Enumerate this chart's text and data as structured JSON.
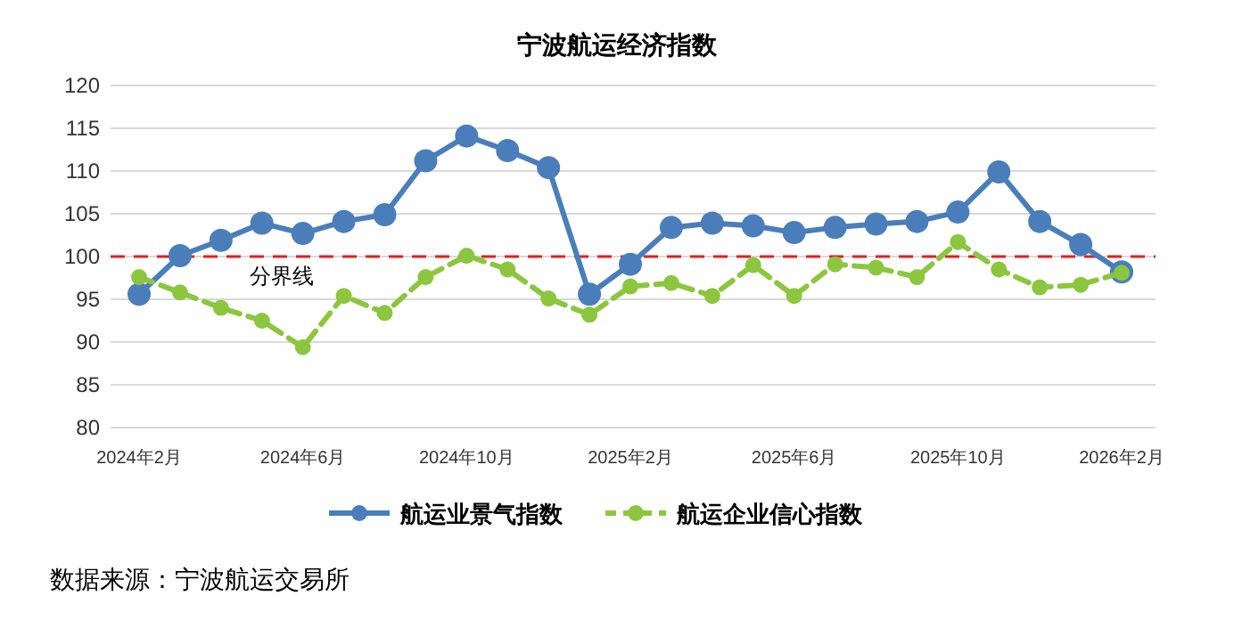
{
  "chart_data": {
    "type": "line",
    "title": "宁波航运经济指数",
    "categories": [
      "2024年2月",
      null,
      null,
      null,
      "2024年6月",
      null,
      null,
      null,
      "2024年10月",
      null,
      null,
      null,
      "2025年2月",
      null,
      null,
      null,
      "2025年6月",
      null,
      null,
      null,
      "2025年10月",
      null,
      null,
      null,
      "2026年2月"
    ],
    "series": [
      {
        "name": "航运业景气指数",
        "color": "#4a7ebb",
        "line_style": "solid",
        "values": [
          95.6,
          100.1,
          101.9,
          103.9,
          102.7,
          104.1,
          104.9,
          111.2,
          114.1,
          112.4,
          110.4,
          95.6,
          99.1,
          103.4,
          103.9,
          103.6,
          102.8,
          103.4,
          103.8,
          104.1,
          105.2,
          109.9,
          104.1,
          101.4,
          98.2
        ]
      },
      {
        "name": "航运企业信心指数",
        "color": "#8cc63f",
        "line_style": "dashed",
        "values": [
          97.6,
          95.8,
          94.0,
          92.5,
          89.4,
          95.4,
          93.4,
          97.6,
          100.1,
          98.5,
          95.1,
          93.2,
          96.5,
          96.9,
          95.4,
          99.0,
          95.4,
          99.1,
          98.7,
          97.6,
          101.7,
          98.5,
          96.4,
          96.7,
          98.1
        ]
      }
    ],
    "ylim": [
      80,
      120
    ],
    "yticks": [
      80,
      85,
      90,
      95,
      100,
      105,
      110,
      115,
      120
    ],
    "grid": "y",
    "marker": "circle",
    "legend": "bottom",
    "ref_lines": [
      {
        "axis": "y",
        "value": 100,
        "label": "分界线",
        "color": "#e02020",
        "line_style": "dashed"
      }
    ],
    "annotations": [
      "数据来源：宁波航运交易所"
    ]
  }
}
